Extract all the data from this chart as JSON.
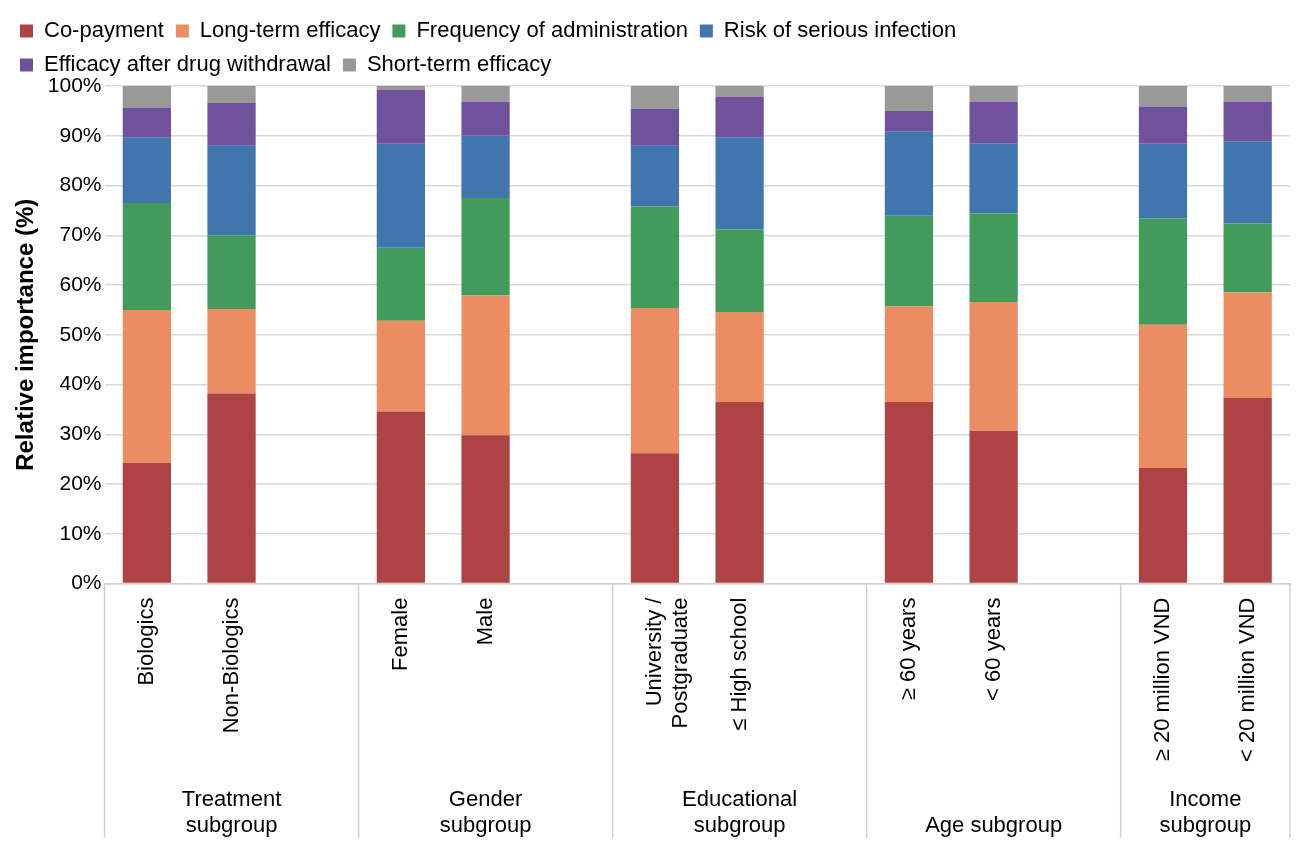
{
  "chart_data": {
    "type": "bar",
    "stacked": true,
    "ylabel": "Relative importance (%)",
    "categories": [
      "Biologics",
      "Non-Biologics",
      null,
      "Female",
      "Male",
      null,
      "University / Postgraduate",
      "≤ High school",
      null,
      "≥ 60 years",
      "< 60 years",
      null,
      "≥ 20 million VND",
      "< 20 million VND"
    ],
    "series": [
      {
        "name": "Co-payment",
        "color": "#ad4345",
        "values": [
          24.3,
          38.2,
          null,
          34.6,
          29.8,
          null,
          26.2,
          36.5,
          null,
          36.5,
          30.7,
          null,
          23.2,
          37.3
        ]
      },
      {
        "name": "Long-term efficacy",
        "color": "#eb8d60",
        "values": [
          30.7,
          17,
          null,
          18.2,
          28.1,
          null,
          29.2,
          18.1,
          null,
          19.2,
          25.9,
          null,
          28.8,
          21.2
        ]
      },
      {
        "name": "Frequency of administration",
        "color": "#439b5b",
        "values": [
          21.5,
          14.8,
          null,
          14.7,
          19.6,
          null,
          20.4,
          16.6,
          null,
          18.2,
          17.8,
          null,
          21.4,
          13.9
        ]
      },
      {
        "name": "Risk of serious infection",
        "color": "#4075ad",
        "values": [
          13.2,
          18,
          null,
          20.9,
          12.5,
          null,
          12.2,
          18.5,
          null,
          16.9,
          14.1,
          null,
          15,
          16.4
        ]
      },
      {
        "name": "Efficacy after drug withdrawal",
        "color": "#6f529b",
        "values": [
          6,
          8.6,
          null,
          10.9,
          6.9,
          null,
          7.5,
          8.1,
          null,
          4.2,
          8.4,
          null,
          7.5,
          8.1
        ]
      },
      {
        "name": "Short-term efficacy",
        "color": "#999a98",
        "values": [
          4.3,
          3.4,
          null,
          0.7,
          3.1,
          null,
          4.5,
          2.2,
          null,
          5,
          3.1,
          null,
          4.1,
          3.1
        ]
      }
    ],
    "ylim": [
      0,
      100
    ],
    "yticks": [
      {
        "value": 0,
        "label": "0%"
      },
      {
        "value": 10,
        "label": "10%"
      },
      {
        "value": 20,
        "label": "20%"
      },
      {
        "value": 30,
        "label": "30%"
      },
      {
        "value": 40,
        "label": "40%"
      },
      {
        "value": 50,
        "label": "50%"
      },
      {
        "value": 60,
        "label": "60%"
      },
      {
        "value": 70,
        "label": "70%"
      },
      {
        "value": 80,
        "label": "80%"
      },
      {
        "value": 90,
        "label": "90%"
      },
      {
        "value": 100,
        "label": "100%"
      }
    ],
    "grid": "y",
    "legend": "top",
    "annotations": [
      "Treatment subgroup",
      "Gender subgroup",
      "Educational subgroup",
      "Age subgroup",
      "Income subgroup"
    ]
  }
}
